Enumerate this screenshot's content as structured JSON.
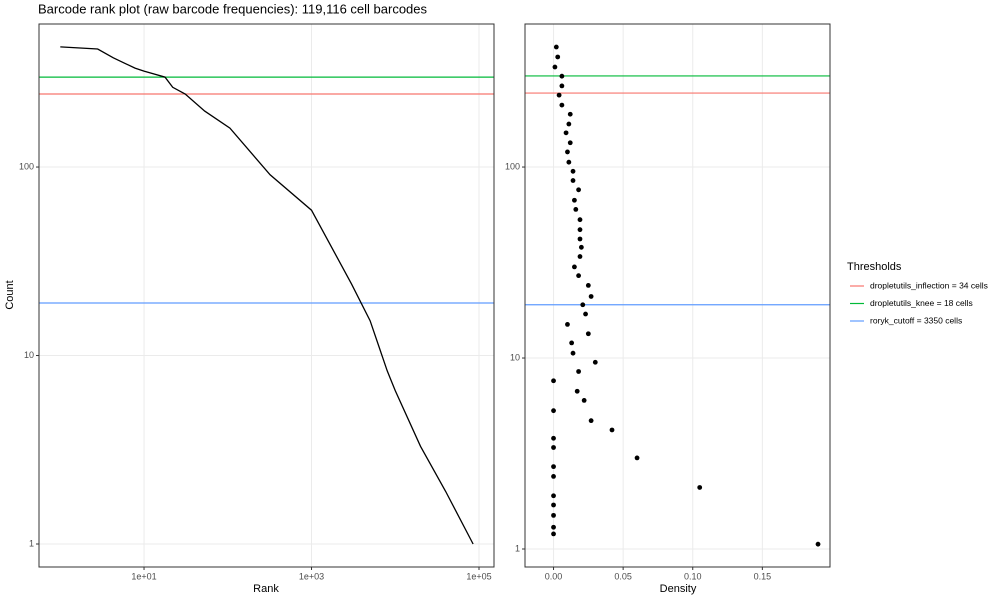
{
  "chart_data": [
    {
      "type": "line",
      "title": "Barcode rank plot (raw barcode frequencies): 119,116 cell barcodes",
      "x_label": "Rank",
      "y_label": "Count",
      "xlog": true,
      "ylog": true,
      "grid": true,
      "color": "#000000",
      "x": [
        1,
        2.8,
        4.3,
        5.9,
        7.8,
        10,
        17.8,
        22,
        31,
        53,
        106,
        320,
        1000,
        3000,
        5000,
        8000,
        10000,
        20000,
        40000,
        85000
      ],
      "values": [
        434,
        423,
        380,
        355,
        335,
        323,
        300,
        265,
        244,
        198,
        161,
        91,
        59,
        24,
        15.3,
        8.3,
        6.5,
        3.3,
        1.9,
        1
      ],
      "xlim": [
        0.557,
        151000
      ],
      "ylim": [
        0.755,
        574
      ],
      "xticks": [
        {
          "value": 10,
          "label": "1e+01"
        },
        {
          "value": 1000,
          "label": "1e+03"
        },
        {
          "value": 100000,
          "label": "1e+05"
        }
      ],
      "yticks": [
        1,
        10,
        100
      ],
      "legend_title": "Thresholds",
      "hlines": [
        {
          "name": "dropletutils_inflection = 34 cells",
          "color": "#f8766d",
          "value": 244
        },
        {
          "name": "dropletutils_knee = 18 cells",
          "color": "#00ba38",
          "value": 300
        },
        {
          "name": "roryk_cutoff = 3350 cells",
          "color": "#619cff",
          "value": 19
        }
      ]
    },
    {
      "type": "scatter",
      "x_label": "Density",
      "ylog": true,
      "grid": true,
      "color": "#000000",
      "x": [
        0.002,
        0.003,
        0.001,
        0.006,
        0.006,
        0.004,
        0.006,
        0.012,
        0.011,
        0.009,
        0.012,
        0.01,
        0.011,
        0.014,
        0.014,
        0.018,
        0.015,
        0.016,
        0.019,
        0.019,
        0.019,
        0.02,
        0.019,
        0.015,
        0.018,
        0.025,
        0.027,
        0.021,
        0.023,
        0.01,
        0.025,
        0.013,
        0.014,
        0.03,
        0.018,
        0,
        0.017,
        0.022,
        0,
        0.027,
        0.042,
        0,
        0,
        0.06,
        0,
        0,
        0.105,
        0,
        0,
        0,
        0,
        0,
        0.19
      ],
      "values": [
        425,
        377,
        334,
        299,
        266,
        238,
        211,
        189,
        168,
        151,
        134,
        120,
        106,
        95,
        85,
        76,
        67,
        60,
        53,
        47,
        42,
        38,
        34,
        30,
        27,
        24,
        21,
        19,
        17,
        15,
        13.4,
        12,
        10.6,
        9.5,
        8.5,
        7.6,
        6.7,
        6.0,
        5.3,
        4.7,
        4.2,
        3.8,
        3.4,
        3.0,
        2.7,
        2.4,
        2.1,
        1.9,
        1.7,
        1.5,
        1.3,
        1.2,
        1.06
      ],
      "xlim": [
        -0.0205,
        0.1986
      ],
      "ylim": [
        0.805,
        561
      ],
      "xticks": [
        {
          "value": 0,
          "label": "0.00"
        },
        {
          "value": 0.05,
          "label": "0.05"
        },
        {
          "value": 0.1,
          "label": "0.10"
        },
        {
          "value": 0.15,
          "label": "0.15"
        }
      ],
      "yticks": [
        1,
        10,
        100
      ],
      "hlines": [
        {
          "color": "#f8766d",
          "value": 244
        },
        {
          "color": "#00ba38",
          "value": 300
        },
        {
          "color": "#619cff",
          "value": 19
        }
      ]
    }
  ]
}
